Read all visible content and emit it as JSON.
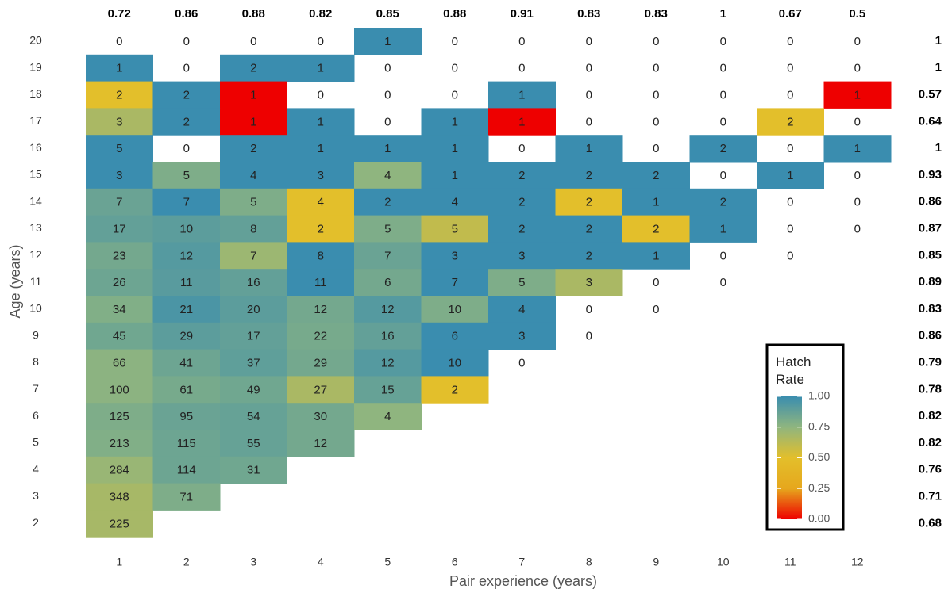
{
  "chart_data": {
    "type": "heatmap",
    "x_label": "Pair experience (years)",
    "y_label": "Age (years)",
    "categories": [
      "1",
      "2",
      "3",
      "4",
      "5",
      "6",
      "7",
      "8",
      "9",
      "10",
      "11",
      "12"
    ],
    "rows": [
      "20",
      "19",
      "18",
      "17",
      "16",
      "15",
      "14",
      "13",
      "12",
      "11",
      "10",
      "9",
      "8",
      "7",
      "6",
      "5",
      "4",
      "3",
      "2"
    ],
    "counts": [
      [
        0,
        0,
        0,
        0,
        1,
        0,
        0,
        0,
        0,
        0,
        0,
        0
      ],
      [
        1,
        0,
        2,
        1,
        0,
        0,
        0,
        0,
        0,
        0,
        0,
        0
      ],
      [
        2,
        2,
        1,
        0,
        0,
        0,
        1,
        0,
        0,
        0,
        0,
        1
      ],
      [
        3,
        2,
        1,
        1,
        0,
        1,
        1,
        0,
        0,
        0,
        2,
        0
      ],
      [
        5,
        0,
        2,
        1,
        1,
        1,
        0,
        1,
        0,
        2,
        0,
        1
      ],
      [
        3,
        5,
        4,
        3,
        4,
        1,
        2,
        2,
        2,
        0,
        1,
        0
      ],
      [
        7,
        7,
        5,
        4,
        2,
        4,
        2,
        2,
        1,
        2,
        0,
        0
      ],
      [
        17,
        10,
        8,
        2,
        5,
        5,
        2,
        2,
        2,
        1,
        0,
        0
      ],
      [
        23,
        12,
        7,
        8,
        7,
        3,
        3,
        2,
        1,
        0,
        0,
        null
      ],
      [
        26,
        11,
        16,
        11,
        6,
        7,
        5,
        3,
        0,
        0,
        null,
        null
      ],
      [
        34,
        21,
        20,
        12,
        12,
        10,
        4,
        0,
        0,
        null,
        null,
        null
      ],
      [
        45,
        29,
        17,
        22,
        16,
        6,
        3,
        0,
        null,
        null,
        null,
        null
      ],
      [
        66,
        41,
        37,
        29,
        12,
        10,
        0,
        null,
        null,
        null,
        null,
        null
      ],
      [
        100,
        61,
        49,
        27,
        15,
        2,
        null,
        null,
        null,
        null,
        null,
        null
      ],
      [
        125,
        95,
        54,
        30,
        4,
        null,
        null,
        null,
        null,
        null,
        null,
        null
      ],
      [
        213,
        115,
        55,
        12,
        null,
        null,
        null,
        null,
        null,
        null,
        null,
        null
      ],
      [
        284,
        114,
        31,
        null,
        null,
        null,
        null,
        null,
        null,
        null,
        null,
        null
      ],
      [
        348,
        71,
        null,
        null,
        null,
        null,
        null,
        null,
        null,
        null,
        null,
        null
      ],
      [
        225,
        null,
        null,
        null,
        null,
        null,
        null,
        null,
        null,
        null,
        null,
        null
      ]
    ],
    "rates": [
      [
        null,
        null,
        null,
        null,
        1,
        null,
        null,
        null,
        null,
        null,
        null,
        null
      ],
      [
        1,
        null,
        1,
        1,
        null,
        null,
        null,
        null,
        null,
        null,
        null,
        null
      ],
      [
        0.5,
        1,
        0,
        null,
        null,
        null,
        1,
        null,
        null,
        null,
        null,
        0
      ],
      [
        0.67,
        1,
        0,
        1,
        null,
        1,
        0,
        null,
        null,
        null,
        0.5,
        null
      ],
      [
        1,
        null,
        1,
        1,
        1,
        1,
        null,
        1,
        null,
        1,
        null,
        1
      ],
      [
        1,
        0.8,
        1,
        1,
        0.75,
        1,
        1,
        1,
        1,
        null,
        1,
        null
      ],
      [
        0.86,
        1,
        0.8,
        0.5,
        1,
        1,
        1,
        0.5,
        1,
        1,
        null,
        null
      ],
      [
        0.88,
        0.9,
        0.88,
        0.5,
        0.8,
        0.6,
        1,
        1,
        0.5,
        1,
        null,
        null
      ],
      [
        0.83,
        0.92,
        0.71,
        1,
        0.86,
        1,
        1,
        1,
        1,
        null,
        null,
        null
      ],
      [
        0.85,
        0.91,
        0.88,
        1,
        0.83,
        1,
        0.8,
        0.67,
        null,
        null,
        null,
        null
      ],
      [
        0.79,
        0.95,
        0.9,
        0.83,
        0.92,
        0.8,
        1,
        null,
        null,
        null,
        null,
        null
      ],
      [
        0.84,
        0.9,
        0.88,
        0.82,
        0.88,
        1,
        1,
        null,
        null,
        null,
        null,
        null
      ],
      [
        0.76,
        0.85,
        0.89,
        0.83,
        0.92,
        1,
        null,
        null,
        null,
        null,
        null,
        null
      ],
      [
        0.76,
        0.82,
        0.84,
        0.67,
        0.87,
        0.5,
        null,
        null,
        null,
        null,
        null,
        null
      ],
      [
        0.8,
        0.86,
        0.87,
        0.83,
        0.75,
        null,
        null,
        null,
        null,
        null,
        null,
        null
      ],
      [
        0.79,
        0.85,
        0.87,
        0.83,
        null,
        null,
        null,
        null,
        null,
        null,
        null,
        null
      ],
      [
        0.72,
        0.85,
        0.84,
        null,
        null,
        null,
        null,
        null,
        null,
        null,
        null,
        null
      ],
      [
        0.68,
        0.8,
        null,
        null,
        null,
        null,
        null,
        null,
        null,
        null,
        null,
        null
      ],
      [
        0.68,
        null,
        null,
        null,
        null,
        null,
        null,
        null,
        null,
        null,
        null,
        null
      ]
    ],
    "col_rates": [
      0.72,
      0.86,
      0.88,
      0.82,
      0.85,
      0.88,
      0.91,
      0.83,
      0.83,
      1,
      0.67,
      0.5
    ],
    "row_rates": [
      1,
      1,
      0.57,
      0.64,
      1,
      0.93,
      0.86,
      0.87,
      0.85,
      0.89,
      0.83,
      0.86,
      0.79,
      0.78,
      0.82,
      0.82,
      0.76,
      0.71,
      0.68
    ],
    "legend_title": "Hatch Rate",
    "clim": [
      0,
      1
    ],
    "cticks": [
      {
        "value": 0,
        "label": "0.00"
      },
      {
        "value": 0.25,
        "label": "0.25"
      },
      {
        "value": 0.5,
        "label": "0.50"
      },
      {
        "value": 0.75,
        "label": "0.75"
      },
      {
        "value": 1,
        "label": "1.00"
      }
    ],
    "colormap": [
      "#ee0000",
      "#e6a71d",
      "#e3bf2b",
      "#8fb57f",
      "#3a8daf"
    ]
  }
}
